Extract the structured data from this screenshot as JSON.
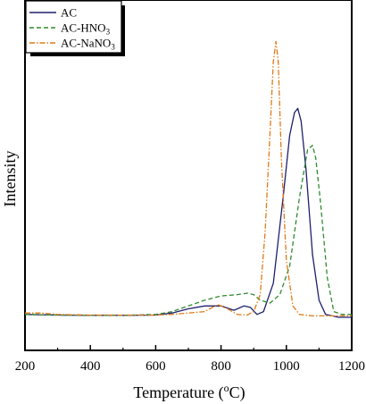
{
  "chart_data": {
    "type": "line",
    "title": "",
    "xlabel": "Temperature (",
    "xlabel_degree": "o",
    "xlabel_unit": "C)",
    "ylabel": "Intensity",
    "xlim": [
      200,
      1200
    ],
    "ylim": [
      0,
      1
    ],
    "x_ticks": [
      200,
      400,
      600,
      800,
      1000,
      1200
    ],
    "y_ticks": [],
    "grid": false,
    "legend_position": "top-left",
    "series": [
      {
        "name": "AC",
        "name_sub": "",
        "color": "#1f1f6e",
        "dash": "solid",
        "points": [
          [
            200,
            0.01
          ],
          [
            300,
            0.008
          ],
          [
            400,
            0.007
          ],
          [
            500,
            0.007
          ],
          [
            600,
            0.008
          ],
          [
            650,
            0.015
          ],
          [
            700,
            0.03
          ],
          [
            750,
            0.04
          ],
          [
            800,
            0.04
          ],
          [
            840,
            0.025
          ],
          [
            870,
            0.04
          ],
          [
            890,
            0.035
          ],
          [
            910,
            0.01
          ],
          [
            930,
            0.02
          ],
          [
            960,
            0.12
          ],
          [
            990,
            0.42
          ],
          [
            1010,
            0.64
          ],
          [
            1025,
            0.72
          ],
          [
            1035,
            0.735
          ],
          [
            1045,
            0.69
          ],
          [
            1060,
            0.52
          ],
          [
            1080,
            0.22
          ],
          [
            1100,
            0.06
          ],
          [
            1120,
            0.01
          ],
          [
            1160,
            0.0
          ],
          [
            1200,
            0.0
          ]
        ]
      },
      {
        "name": "AC-HNO",
        "name_sub": "3",
        "color": "#2e8b2e",
        "dash": "5,3",
        "points": [
          [
            200,
            0.01
          ],
          [
            300,
            0.008
          ],
          [
            400,
            0.007
          ],
          [
            500,
            0.007
          ],
          [
            600,
            0.01
          ],
          [
            650,
            0.02
          ],
          [
            700,
            0.04
          ],
          [
            750,
            0.06
          ],
          [
            800,
            0.075
          ],
          [
            850,
            0.08
          ],
          [
            880,
            0.085
          ],
          [
            900,
            0.08
          ],
          [
            920,
            0.06
          ],
          [
            950,
            0.05
          ],
          [
            980,
            0.08
          ],
          [
            1010,
            0.18
          ],
          [
            1040,
            0.42
          ],
          [
            1065,
            0.59
          ],
          [
            1080,
            0.605
          ],
          [
            1090,
            0.56
          ],
          [
            1105,
            0.4
          ],
          [
            1125,
            0.14
          ],
          [
            1145,
            0.02
          ],
          [
            1170,
            0.01
          ],
          [
            1200,
            0.01
          ]
        ]
      },
      {
        "name": "AC-NaNO",
        "name_sub": "3",
        "color": "#e07a18",
        "dash": "6,2,1.5,2",
        "points": [
          [
            200,
            0.015
          ],
          [
            250,
            0.015
          ],
          [
            300,
            0.01
          ],
          [
            400,
            0.008
          ],
          [
            500,
            0.008
          ],
          [
            600,
            0.008
          ],
          [
            650,
            0.01
          ],
          [
            700,
            0.015
          ],
          [
            750,
            0.02
          ],
          [
            790,
            0.045
          ],
          [
            820,
            0.03
          ],
          [
            850,
            0.01
          ],
          [
            880,
            0.008
          ],
          [
            900,
            0.02
          ],
          [
            920,
            0.08
          ],
          [
            935,
            0.3
          ],
          [
            950,
            0.65
          ],
          [
            960,
            0.9
          ],
          [
            968,
            0.97
          ],
          [
            975,
            0.9
          ],
          [
            985,
            0.55
          ],
          [
            1000,
            0.2
          ],
          [
            1020,
            0.04
          ],
          [
            1040,
            0.01
          ],
          [
            1080,
            0.005
          ],
          [
            1120,
            0.005
          ],
          [
            1200,
            0.005
          ]
        ]
      }
    ]
  }
}
